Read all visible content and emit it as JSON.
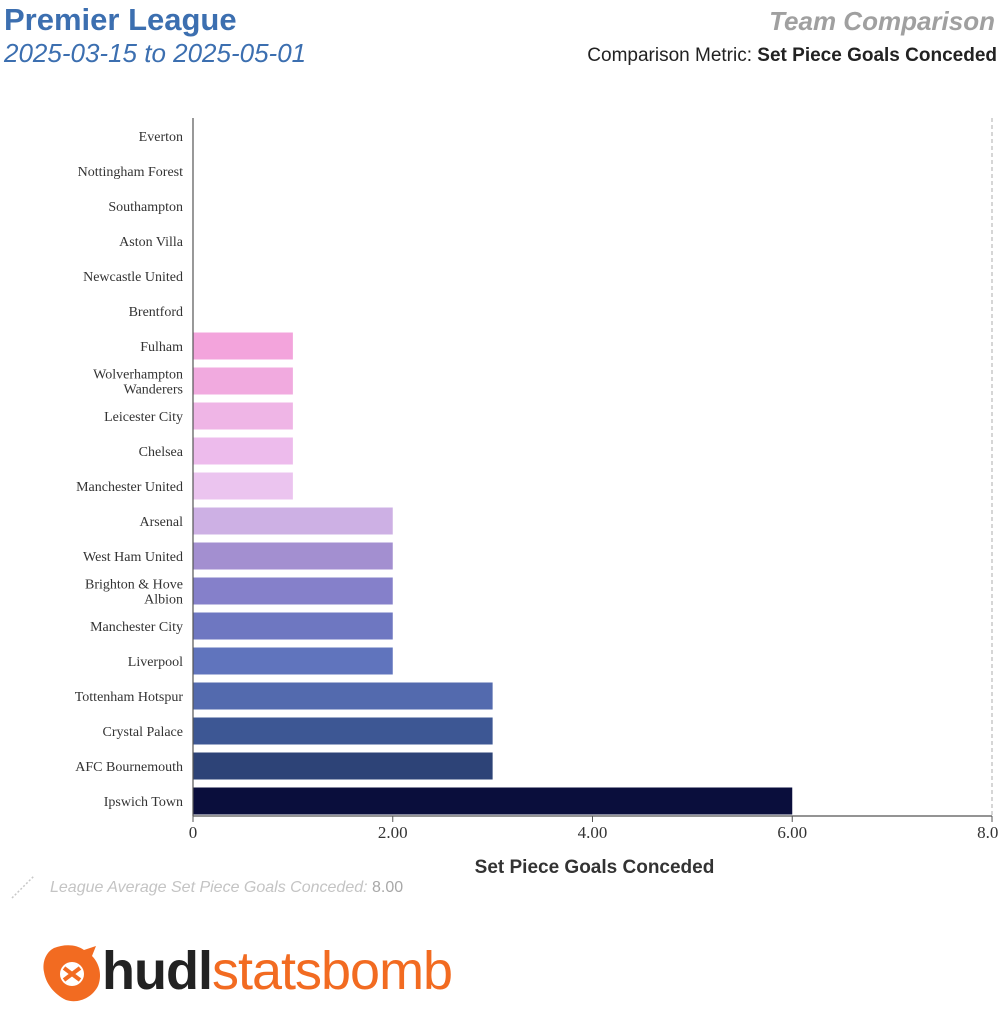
{
  "header": {
    "title": "Premier League",
    "date_range": "2025-03-15 to 2025-05-01",
    "right_title": "Team Comparison",
    "metric_label": "Comparison Metric:",
    "metric_value": "Set Piece Goals Conceded"
  },
  "chart_data": {
    "type": "bar",
    "orientation": "horizontal",
    "xlabel": "Set Piece Goals Conceded",
    "xlim": [
      0,
      8
    ],
    "xticks": [
      "0",
      "2.00",
      "4.00",
      "6.00",
      "8.00"
    ],
    "categories": [
      "Everton",
      "Nottingham Forest",
      "Southampton",
      "Aston Villa",
      "Newcastle United",
      "Brentford",
      "Fulham",
      "Wolverhampton Wanderers",
      "Leicester City",
      "Chelsea",
      "Manchester United",
      "Arsenal",
      "West Ham United",
      "Brighton & Hove Albion",
      "Manchester City",
      "Liverpool",
      "Tottenham Hotspur",
      "Crystal Palace",
      "AFC Bournemouth",
      "Ipswich Town"
    ],
    "label_lines": [
      [
        "Everton"
      ],
      [
        "Nottingham Forest"
      ],
      [
        "Southampton"
      ],
      [
        "Aston Villa"
      ],
      [
        "Newcastle United"
      ],
      [
        "Brentford"
      ],
      [
        "Fulham"
      ],
      [
        "Wolverhampton",
        "Wanderers"
      ],
      [
        "Leicester City"
      ],
      [
        "Chelsea"
      ],
      [
        "Manchester United"
      ],
      [
        "Arsenal"
      ],
      [
        "West Ham United"
      ],
      [
        "Brighton & Hove",
        "Albion"
      ],
      [
        "Manchester City"
      ],
      [
        "Liverpool"
      ],
      [
        "Tottenham Hotspur"
      ],
      [
        "Crystal Palace"
      ],
      [
        "AFC Bournemouth"
      ],
      [
        "Ipswich Town"
      ]
    ],
    "values": [
      0,
      0,
      0,
      0,
      0,
      0,
      1,
      1,
      1,
      1,
      1,
      2,
      2,
      2,
      2,
      2,
      3,
      3,
      3,
      6
    ],
    "colors": [
      "#f5a3d8",
      "#f5a3d8",
      "#f5a3d8",
      "#f5a3d8",
      "#f5a3d8",
      "#f5a3d8",
      "#f3a4dc",
      "#f1aadf",
      "#efb5e6",
      "#edbbec",
      "#ebc4ef",
      "#cdb0e4",
      "#a38fd0",
      "#8580ca",
      "#6e77c1",
      "#6074bd",
      "#536aae",
      "#3d5794",
      "#2d4377",
      "#0a0e3c"
    ],
    "league_average": 8.0,
    "league_average_label": "League Average Set Piece Goals Conceded:",
    "league_average_value": "8.00"
  },
  "branding": {
    "logo_part1": "hudl",
    "logo_part2": "statsbomb",
    "logo_color": "#f26b21"
  }
}
